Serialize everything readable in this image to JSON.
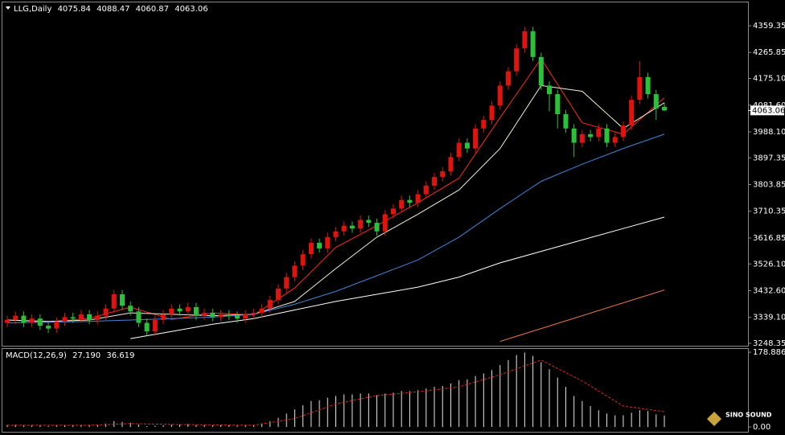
{
  "chart_data": {
    "type": "candlestick",
    "symbol": "LLG,Daily",
    "up_color": "#e0140f",
    "down_color": "#2cc13a",
    "open": [
      3320,
      3330,
      3345,
      3320,
      3335,
      3310,
      3300,
      3325,
      3340,
      3335,
      3350,
      3330,
      3345,
      3370,
      3420,
      3380,
      3360,
      3320,
      3290,
      3330,
      3350,
      3370,
      3360,
      3375,
      3345,
      3355,
      3340,
      3350,
      3345,
      3335,
      3350,
      3355,
      3370,
      3400,
      3440,
      3480,
      3520,
      3560,
      3600,
      3580,
      3620,
      3640,
      3660,
      3650,
      3680,
      3670,
      3640,
      3700,
      3720,
      3750,
      3740,
      3770,
      3800,
      3830,
      3850,
      3900,
      3950,
      3930,
      4000,
      4030,
      4080,
      4150,
      4200,
      4280,
      4340,
      4250,
      4150,
      4120,
      4050,
      4000,
      3950,
      3980,
      3970,
      4000,
      3950,
      3970,
      4010,
      4100,
      4180,
      4120,
      4075.84
    ],
    "high": [
      3345,
      3360,
      3360,
      3350,
      3350,
      3325,
      3340,
      3355,
      3355,
      3365,
      3365,
      3360,
      3385,
      3435,
      3435,
      3395,
      3375,
      3335,
      3345,
      3365,
      3385,
      3385,
      3390,
      3390,
      3370,
      3370,
      3365,
      3365,
      3360,
      3365,
      3370,
      3385,
      3415,
      3455,
      3495,
      3535,
      3575,
      3615,
      3615,
      3635,
      3655,
      3675,
      3675,
      3695,
      3695,
      3685,
      3715,
      3735,
      3765,
      3765,
      3785,
      3815,
      3845,
      3865,
      3915,
      3965,
      3965,
      4015,
      4045,
      4095,
      4165,
      4215,
      4295,
      4355,
      4355,
      4265,
      4165,
      4135,
      4065,
      4015,
      3995,
      3995,
      4015,
      4015,
      3985,
      4025,
      4115,
      4235,
      4195,
      4135,
      4088.47
    ],
    "low": [
      3305,
      3315,
      3305,
      3305,
      3295,
      3285,
      3285,
      3310,
      3320,
      3320,
      3315,
      3315,
      3330,
      3355,
      3365,
      3345,
      3305,
      3275,
      3275,
      3315,
      3335,
      3345,
      3345,
      3330,
      3330,
      3325,
      3325,
      3330,
      3320,
      3320,
      3335,
      3340,
      3355,
      3385,
      3425,
      3465,
      3505,
      3545,
      3565,
      3565,
      3605,
      3625,
      3635,
      3635,
      3655,
      3625,
      3625,
      3685,
      3705,
      3725,
      3725,
      3755,
      3785,
      3815,
      3835,
      3885,
      3915,
      3915,
      3985,
      4015,
      4065,
      4135,
      4185,
      4265,
      4235,
      4135,
      4060,
      4000,
      3985,
      3900,
      3935,
      3955,
      3955,
      3935,
      3935,
      3955,
      3995,
      4085,
      4105,
      4030,
      4060.87
    ],
    "close": [
      3330,
      3345,
      3320,
      3335,
      3310,
      3300,
      3325,
      3340,
      3335,
      3350,
      3330,
      3345,
      3370,
      3420,
      3380,
      3360,
      3320,
      3290,
      3330,
      3350,
      3370,
      3360,
      3375,
      3345,
      3355,
      3340,
      3350,
      3345,
      3335,
      3350,
      3355,
      3370,
      3400,
      3440,
      3480,
      3520,
      3560,
      3600,
      3580,
      3620,
      3640,
      3660,
      3650,
      3680,
      3670,
      3640,
      3700,
      3720,
      3750,
      3740,
      3770,
      3800,
      3830,
      3850,
      3900,
      3950,
      3930,
      4000,
      4030,
      4080,
      4150,
      4200,
      4280,
      4340,
      4250,
      4150,
      4120,
      4050,
      4000,
      3950,
      3980,
      3970,
      4000,
      3950,
      3970,
      4010,
      4100,
      4180,
      4120,
      4070,
      4063.06
    ],
    "moving_averages": [
      {
        "color": "#ff2a1a",
        "values": [
          3330,
          3322,
          3336,
          3375,
          3332,
          3355,
          3347,
          3442,
          3584,
          3660,
          3740,
          3826,
          4038,
          4244,
          4020,
          3980,
          4107
        ]
      },
      {
        "color": "#f2f2d8",
        "values": [
          3330,
          3325,
          3330,
          3355,
          3350,
          3345,
          3350,
          3395,
          3510,
          3620,
          3700,
          3785,
          3930,
          4150,
          4130,
          4000,
          4090
        ]
      },
      {
        "color": "#3f86d8",
        "values": [
          3320,
          3322,
          3325,
          3330,
          3335,
          3340,
          3350,
          3385,
          3430,
          3485,
          3540,
          3620,
          3720,
          3815,
          3875,
          3930,
          3980
        ]
      },
      {
        "color": "#ffffff",
        "values": [
          null,
          null,
          null,
          3265,
          3290,
          3315,
          3335,
          3365,
          3395,
          3420,
          3445,
          3480,
          3530,
          3570,
          3610,
          3650,
          3690
        ]
      },
      {
        "color": "#e8734a",
        "values": [
          null,
          null,
          null,
          null,
          null,
          null,
          null,
          null,
          null,
          null,
          null,
          null,
          3255,
          3300,
          3345,
          3390,
          3435
        ]
      }
    ],
    "ylim": [
      3248.35,
      4359.35
    ],
    "yticks": [
      4359.35,
      4265.85,
      {
        "value": 4175.1,
        "label": "4175.10"
      },
      {
        "value": 4081.6,
        "label": "4081.60"
      },
      {
        "value": 3988.1,
        "label": "3988.10"
      },
      3897.35,
      3803.85,
      3710.35,
      3616.85,
      {
        "value": 3526.1,
        "label": "3526.10"
      },
      {
        "value": 3432.6,
        "label": "3432.60"
      },
      {
        "value": 3339.1,
        "label": "3339.10"
      },
      3248.35
    ],
    "macd": {
      "title": "MACD(12,26,9)",
      "current": [
        {
          "value": 27.19,
          "label": "27.190"
        },
        36.619
      ],
      "histogram": [
        5,
        6,
        4,
        5,
        3,
        2,
        3,
        4,
        4,
        5,
        4,
        5,
        8,
        14,
        12,
        10,
        6,
        2,
        3,
        4,
        6,
        6,
        7,
        5,
        5,
        4,
        4,
        4,
        3,
        4,
        5,
        8,
        14,
        22,
        32,
        42,
        52,
        62,
        64,
        70,
        74,
        78,
        78,
        80,
        80,
        76,
        80,
        82,
        86,
        86,
        88,
        92,
        96,
        98,
        104,
        112,
        114,
        122,
        128,
        136,
        148,
        160,
        172,
        178,
        170,
        155,
        138,
        118,
        96,
        74,
        62,
        50,
        40,
        32,
        28,
        28,
        34,
        40,
        38,
        30,
        27.19
      ],
      "signal": [
        4,
        4,
        4,
        8,
        6,
        5,
        4,
        20,
        55,
        75,
        84,
        96,
        125,
        160,
        110,
        50,
        36.619
      ],
      "histogram_color": "#e6e6e6",
      "signal_color": "#e0281c",
      "ylim": [
        0,
        178.886
      ],
      "yticks": [
        178.886,
        {
          "value": 0,
          "label": "0.00"
        }
      ]
    },
    "logo_text": "SINO SOUND"
  }
}
